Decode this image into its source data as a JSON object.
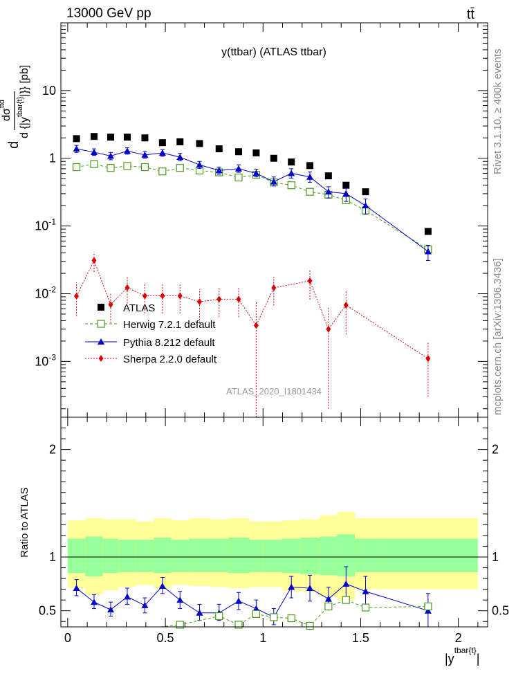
{
  "header": {
    "left": "13000 GeV pp",
    "right": "tt̄"
  },
  "side_labels": {
    "upper": "Rivet 3.1.10, ≥ 400k events",
    "lower": "mcplots.cern.ch [arXiv:1306.3436]"
  },
  "chart_data": [
    {
      "type": "scatter",
      "title": "y(ttbar) (ATLAS ttbar)",
      "watermark": "ATLAS_2020_I1801434",
      "ylabel": "d σ^ttd / d {|y^tbar{t}|} [pb]",
      "y_scale": "log",
      "ylim": [
        0.00015,
        100
      ],
      "xlim": [
        -0.035,
        2.15
      ],
      "ytick_labels": [
        "10^-3",
        "10^-2",
        "10^-1",
        "1",
        "10"
      ],
      "legend_position": "lower-left",
      "x": [
        0.045,
        0.135,
        0.22,
        0.305,
        0.395,
        0.485,
        0.575,
        0.675,
        0.775,
        0.875,
        0.965,
        1.055,
        1.145,
        1.24,
        1.335,
        1.425,
        1.525,
        1.845
      ],
      "series": [
        {
          "name": "ATLAS",
          "color": "#000000",
          "marker": "square",
          "values": [
            1.95,
            2.1,
            2.05,
            2.05,
            2.0,
            1.7,
            1.75,
            1.65,
            1.38,
            1.25,
            1.2,
            1.0,
            0.88,
            0.78,
            0.55,
            0.4,
            0.32,
            0.083
          ]
        },
        {
          "name": "Herwig 7.2.1 default",
          "color": "#4a9a1a",
          "marker": "open-square",
          "values": [
            0.74,
            0.82,
            0.72,
            0.77,
            0.74,
            0.64,
            0.72,
            0.66,
            0.62,
            0.52,
            0.57,
            0.44,
            0.4,
            0.32,
            0.29,
            0.24,
            0.17,
            0.045
          ]
        },
        {
          "name": "Pythia 8.212 default",
          "color": "#0000cc",
          "marker": "triangle",
          "values": [
            1.38,
            1.23,
            1.08,
            1.28,
            1.12,
            1.2,
            1.04,
            0.8,
            0.66,
            0.7,
            0.6,
            0.45,
            0.6,
            0.53,
            0.32,
            0.3,
            0.2,
            0.042
          ],
          "err_lo": [
            1.22,
            1.1,
            0.95,
            1.15,
            1.0,
            1.07,
            0.92,
            0.71,
            0.58,
            0.62,
            0.53,
            0.39,
            0.51,
            0.44,
            0.26,
            0.23,
            0.15,
            0.031
          ],
          "err_hi": [
            1.55,
            1.38,
            1.22,
            1.43,
            1.26,
            1.34,
            1.18,
            0.9,
            0.74,
            0.8,
            0.69,
            0.53,
            0.7,
            0.63,
            0.38,
            0.36,
            0.25,
            0.052
          ]
        },
        {
          "name": "Sherpa 2.2.0 default",
          "color": "#dd0000",
          "marker": "diamond",
          "values": [
            0.0092,
            0.031,
            0.0069,
            0.0123,
            0.0093,
            0.0093,
            0.0093,
            0.0076,
            0.0083,
            0.0083,
            0.0034,
            0.0122,
            null,
            0.0155,
            0.003,
            0.0068,
            null,
            0.0011
          ],
          "err_lo": [
            0.0047,
            0.021,
            0.0037,
            0.0072,
            0.0051,
            0.0051,
            0.0051,
            0.0037,
            0.0045,
            0.0045,
            5e-05,
            0.0067,
            null,
            0.0082,
            0.0002,
            0.0025,
            null,
            0.0003
          ],
          "err_hi": [
            0.0148,
            0.041,
            0.0102,
            0.0177,
            0.0142,
            0.0142,
            0.0142,
            0.0117,
            0.0122,
            0.0124,
            0.0076,
            0.0178,
            null,
            0.0224,
            0.0062,
            0.0112,
            null,
            0.0019
          ]
        }
      ]
    },
    {
      "type": "line",
      "ylabel": "Ratio to ATLAS",
      "xlabel": "|y^tbar{t}|",
      "xlim": [
        -0.035,
        2.15
      ],
      "ylim": [
        0.35,
        2.3
      ],
      "xticks": [
        0,
        0.5,
        1,
        1.5,
        2
      ],
      "yticks": [
        0.5,
        1,
        2
      ],
      "bins": [
        0,
        0.09,
        0.18,
        0.26,
        0.35,
        0.44,
        0.53,
        0.62,
        0.73,
        0.82,
        0.93,
        1.0,
        1.1,
        1.19,
        1.29,
        1.38,
        1.47,
        1.58,
        2.1
      ],
      "band_outer": {
        "color": "#ffff99",
        "lo": [
          0.71,
          0.65,
          0.69,
          0.72,
          0.74,
          0.71,
          0.74,
          0.73,
          0.72,
          0.71,
          0.72,
          0.72,
          0.68,
          0.68,
          0.63,
          0.6,
          0.7,
          0.7
        ],
        "hi": [
          1.34,
          1.36,
          1.35,
          1.35,
          1.33,
          1.36,
          1.34,
          1.36,
          1.35,
          1.36,
          1.33,
          1.33,
          1.34,
          1.35,
          1.39,
          1.42,
          1.36,
          1.36
        ]
      },
      "band_inner": {
        "color": "#99ff99",
        "lo": [
          0.85,
          0.82,
          0.85,
          0.86,
          0.86,
          0.85,
          0.86,
          0.86,
          0.86,
          0.85,
          0.86,
          0.86,
          0.85,
          0.84,
          0.83,
          0.82,
          0.86,
          0.86
        ],
        "hi": [
          1.17,
          1.19,
          1.17,
          1.16,
          1.16,
          1.18,
          1.16,
          1.17,
          1.17,
          1.18,
          1.16,
          1.16,
          1.17,
          1.18,
          1.19,
          1.21,
          1.17,
          1.17
        ]
      },
      "reference_line": 1,
      "series": [
        {
          "name": "Pythia 8.212 default",
          "color": "#0000cc",
          "x": [
            0.045,
            0.135,
            0.22,
            0.305,
            0.395,
            0.485,
            0.575,
            0.675,
            0.775,
            0.875,
            0.965,
            1.055,
            1.145,
            1.24,
            1.335,
            1.425,
            1.525,
            1.845
          ],
          "values": [
            0.71,
            0.58,
            0.51,
            0.63,
            0.55,
            0.73,
            0.6,
            0.48,
            0.48,
            0.59,
            0.52,
            0.44,
            0.72,
            0.71,
            0.61,
            0.75,
            0.68,
            0.5
          ],
          "err_lo": [
            0.64,
            0.52,
            0.45,
            0.56,
            0.48,
            0.66,
            0.52,
            0.41,
            0.41,
            0.51,
            0.44,
            0.37,
            0.62,
            0.59,
            0.51,
            0.6,
            0.55,
            0.35
          ],
          "err_hi": [
            0.79,
            0.65,
            0.58,
            0.71,
            0.62,
            0.81,
            0.68,
            0.56,
            0.56,
            0.67,
            0.6,
            0.52,
            0.82,
            0.83,
            0.72,
            0.91,
            0.82,
            0.66
          ]
        },
        {
          "name": "Herwig 7.2.1 default",
          "color": "#4a9a1a",
          "x": [
            0.575,
            0.775,
            0.875,
            0.965,
            1.055,
            1.145,
            1.24,
            1.335,
            1.425,
            1.525,
            1.845
          ],
          "values": [
            0.37,
            0.45,
            0.37,
            0.47,
            0.44,
            0.43,
            0.36,
            0.54,
            0.6,
            0.53,
            0.54
          ],
          "err_lo": [
            0.36,
            0.43,
            0.35,
            0.45,
            0.42,
            0.41,
            0.34,
            0.5,
            0.57,
            0.51,
            0.52
          ],
          "err_hi": [
            0.38,
            0.47,
            0.39,
            0.49,
            0.46,
            0.45,
            0.38,
            0.58,
            0.63,
            0.55,
            0.56
          ]
        }
      ]
    }
  ]
}
